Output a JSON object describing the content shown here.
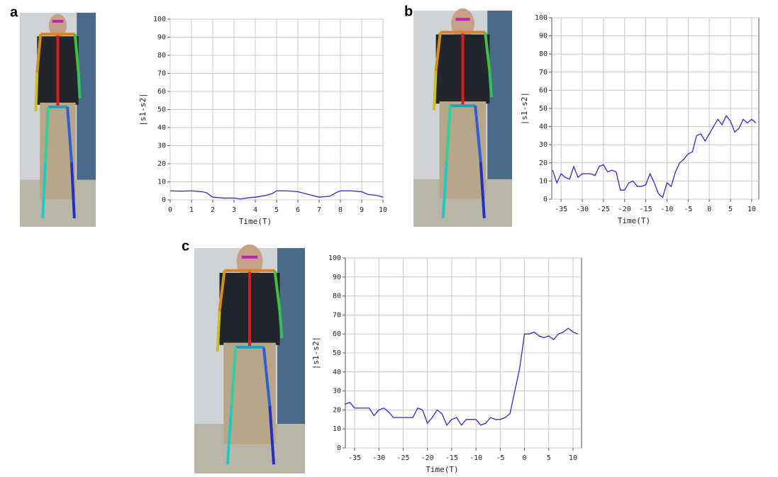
{
  "chart_data": [
    {
      "type": "line",
      "panel_label": "a",
      "x_label": "Time(T)",
      "y_label": "|s1-s2|",
      "color": "#2b2bd0",
      "grid": true,
      "xlim": [
        0,
        10
      ],
      "ylim": [
        0,
        100
      ],
      "xticks": [
        0,
        1,
        2,
        3,
        4,
        5,
        6,
        7,
        8,
        9,
        10
      ],
      "yticks": [
        0,
        10,
        20,
        30,
        40,
        50,
        60,
        70,
        80,
        90,
        100
      ],
      "x": [
        0,
        0.5,
        1,
        1.5,
        1.7,
        2,
        2.5,
        3,
        3.3,
        3.7,
        4,
        4.5,
        4.8,
        5,
        5.5,
        6,
        6.5,
        7,
        7.5,
        7.8,
        8,
        8.5,
        9,
        9.3,
        9.7,
        10
      ],
      "values": [
        5,
        4.8,
        5,
        4.5,
        4,
        1.5,
        1,
        1,
        0.5,
        1.2,
        1.5,
        2.5,
        3.5,
        5,
        5,
        4.5,
        3,
        1.5,
        2,
        4,
        5,
        5,
        4.5,
        3,
        2.5,
        1.5
      ]
    },
    {
      "type": "line",
      "panel_label": "b",
      "x_label": "Time(T)",
      "y_label": "|s1-s2|",
      "color": "#2b2bd0",
      "grid": true,
      "xlim": [
        -37.2,
        11.7
      ],
      "ylim": [
        0,
        100
      ],
      "xticks": [
        -35,
        -30,
        -25,
        -20,
        -15,
        -10,
        -5,
        0,
        5,
        10
      ],
      "yticks": [
        0,
        10,
        20,
        30,
        40,
        50,
        60,
        70,
        80,
        90,
        100
      ],
      "x": [
        -37,
        -36,
        -35,
        -34,
        -33,
        -32,
        -31,
        -30,
        -29,
        -28,
        -27,
        -26,
        -25,
        -24,
        -23,
        -22,
        -21,
        -20,
        -19,
        -18,
        -17,
        -16,
        -15,
        -14,
        -13,
        -12,
        -11,
        -10,
        -9,
        -8,
        -7,
        -6,
        -5,
        -4,
        -3,
        -2,
        -1,
        0,
        1,
        2,
        3,
        4,
        5,
        6,
        7,
        8,
        9,
        10,
        11
      ],
      "values": [
        16,
        9,
        14,
        12,
        11,
        18,
        12,
        14,
        14,
        14,
        13,
        18,
        19,
        15,
        16,
        15,
        5,
        5,
        9,
        10,
        7,
        7,
        8,
        14,
        9,
        3,
        1,
        9,
        7,
        15,
        20,
        22,
        25,
        26,
        35,
        36,
        32,
        36,
        40,
        44,
        41,
        46,
        43,
        37,
        39,
        44,
        42,
        44,
        42
      ]
    },
    {
      "type": "line",
      "panel_label": "c",
      "x_label": "Time(T)",
      "y_label": "|s1-s2|",
      "color": "#2b2bd0",
      "grid": true,
      "xlim": [
        -36.9,
        11.75
      ],
      "ylim": [
        0,
        100
      ],
      "xticks": [
        -35,
        -30,
        -25,
        -20,
        -15,
        -10,
        -5,
        0,
        5,
        10
      ],
      "yticks": [
        0,
        10,
        20,
        30,
        40,
        50,
        60,
        70,
        80,
        90,
        100
      ],
      "x": [
        -37,
        -36,
        -35,
        -34,
        -33,
        -32,
        -31,
        -30,
        -29,
        -28,
        -27,
        -26,
        -25,
        -24,
        -23,
        -22,
        -21,
        -20,
        -19,
        -18,
        -17,
        -16,
        -15,
        -14,
        -13,
        -12,
        -11,
        -10,
        -9,
        -8,
        -7,
        -6,
        -5,
        -4,
        -3,
        -2,
        -1,
        0,
        0.5,
        1,
        2,
        3,
        4,
        5,
        6,
        7,
        8,
        9,
        10,
        11
      ],
      "values": [
        23,
        24,
        21,
        21,
        21,
        21,
        17,
        20,
        21,
        19,
        16,
        16,
        16,
        16,
        16,
        21,
        20,
        13,
        16,
        20,
        18,
        12,
        15,
        16,
        12,
        15,
        15,
        15,
        12,
        13,
        16,
        15,
        15,
        16,
        18,
        30,
        42,
        60,
        60,
        60,
        61,
        59,
        58,
        59,
        57,
        60,
        61,
        63,
        61,
        60
      ]
    }
  ]
}
